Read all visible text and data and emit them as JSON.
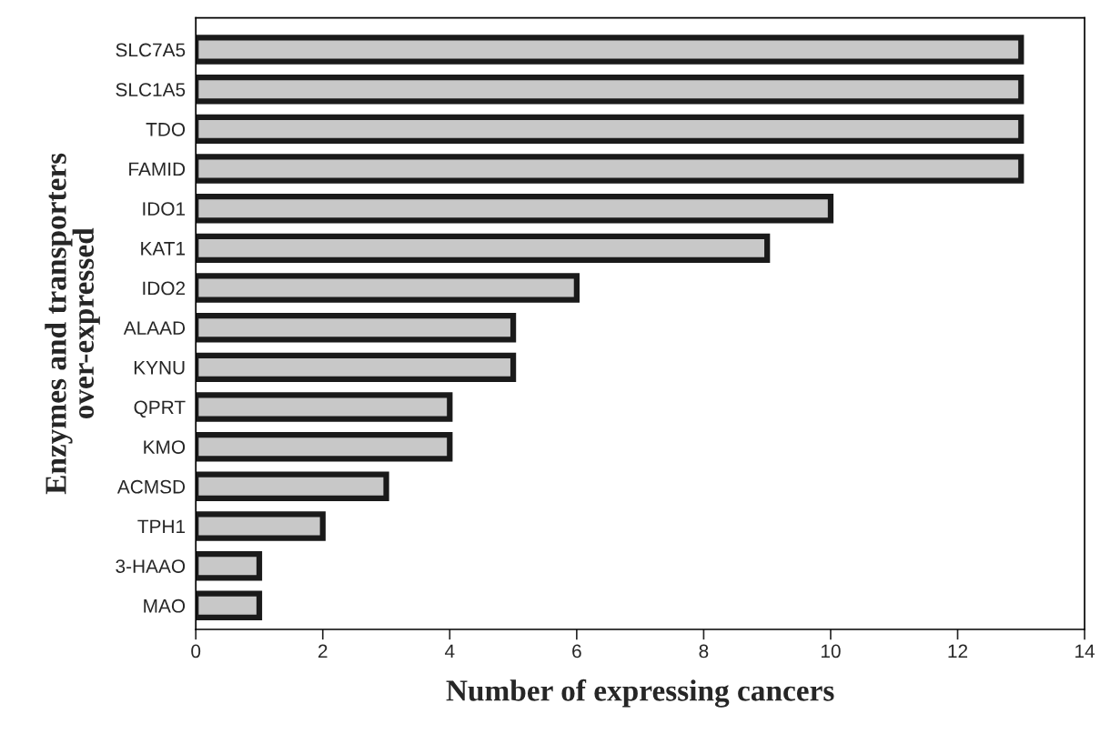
{
  "chart_data": {
    "type": "bar",
    "orientation": "horizontal",
    "xlabel": "Number of expressing cancers",
    "ylabel": "Enzymes and transporters\nover-expressed",
    "categories": [
      "SLC7A5",
      "SLC1A5",
      "TDO",
      "FAMID",
      "IDO1",
      "KAT1",
      "IDO2",
      "ALAAD",
      "KYNU",
      "QPRT",
      "KMO",
      "ACMSD",
      "TPH1",
      "3-HAAO",
      "MAO"
    ],
    "values": [
      13,
      13,
      13,
      13,
      10,
      9,
      6,
      5,
      5,
      4,
      4,
      3,
      2,
      1,
      1
    ],
    "color": "#c8c8c8",
    "xlim": [
      0,
      14
    ],
    "xticks": [
      0,
      2,
      4,
      6,
      8,
      10,
      12,
      14
    ]
  }
}
